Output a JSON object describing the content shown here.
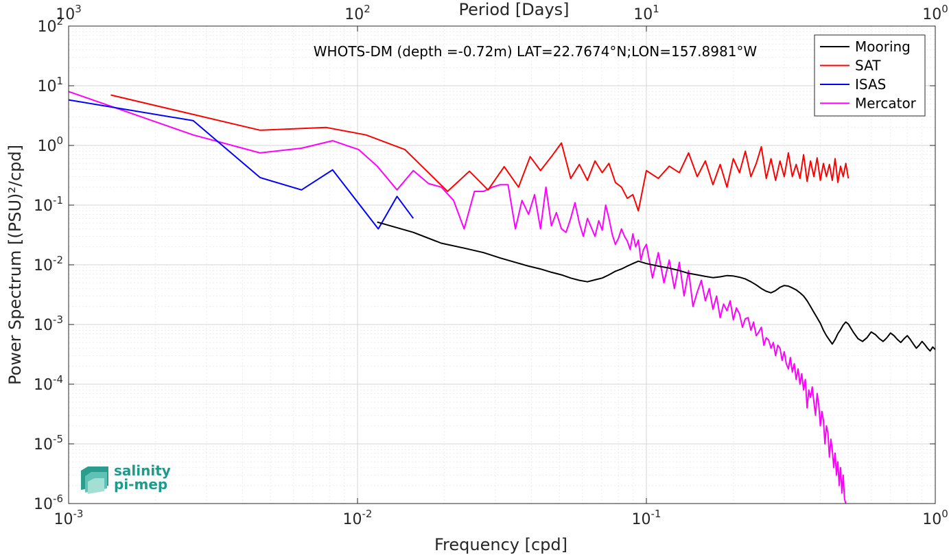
{
  "chart_data": {
    "type": "line",
    "title": "",
    "annotation": "WHOTS-DM (depth =-0.72m) LAT=22.7674°N;LON=157.8981°W",
    "xlabel": "Frequency [cpd]",
    "xlabel_top": "Period [Days]",
    "ylabel": "Power Spectrum [(PSU)²/cpd]",
    "x_scale": "log",
    "y_scale": "log",
    "xlim": [
      0.001,
      1
    ],
    "ylim": [
      1e-06,
      100
    ],
    "grid": true,
    "legend_position": "top-right",
    "x_ticks": [
      {
        "v": 0.001,
        "b": "10",
        "e": "-3"
      },
      {
        "v": 0.01,
        "b": "10",
        "e": "-2"
      },
      {
        "v": 0.1,
        "b": "10",
        "e": "-1"
      },
      {
        "v": 1,
        "b": "10",
        "e": "0"
      }
    ],
    "x_top_ticks": [
      {
        "v": 0.001,
        "b": "10",
        "e": "3"
      },
      {
        "v": 0.01,
        "b": "10",
        "e": "2"
      },
      {
        "v": 0.1,
        "b": "10",
        "e": "1"
      },
      {
        "v": 1,
        "b": "10",
        "e": "0"
      }
    ],
    "y_ticks": [
      {
        "v": 1e-06,
        "b": "10",
        "e": "-6"
      },
      {
        "v": 1e-05,
        "b": "10",
        "e": "-5"
      },
      {
        "v": 0.0001,
        "b": "10",
        "e": "-4"
      },
      {
        "v": 0.001,
        "b": "10",
        "e": "-3"
      },
      {
        "v": 0.01,
        "b": "10",
        "e": "-2"
      },
      {
        "v": 0.1,
        "b": "10",
        "e": "-1"
      },
      {
        "v": 1,
        "b": "10",
        "e": "0"
      },
      {
        "v": 10,
        "b": "10",
        "e": "1"
      },
      {
        "v": 100,
        "b": "10",
        "e": "2"
      }
    ],
    "series": [
      {
        "name": "Mooring",
        "color": "#000000",
        "x": [
          0.0117,
          0.0156,
          0.0195,
          0.0234,
          0.0273,
          0.0312,
          0.0352,
          0.0391,
          0.043,
          0.0469,
          0.0508,
          0.0547,
          0.0586,
          0.0625,
          0.0664,
          0.0703,
          0.0742,
          0.0781,
          0.082,
          0.0859,
          0.0898,
          0.0938,
          0.1,
          0.11,
          0.12,
          0.13,
          0.14,
          0.15,
          0.16,
          0.17,
          0.18,
          0.19,
          0.2,
          0.21,
          0.22,
          0.23,
          0.24,
          0.25,
          0.26,
          0.27,
          0.28,
          0.29,
          0.3,
          0.31,
          0.32,
          0.33,
          0.34,
          0.35,
          0.36,
          0.37,
          0.38,
          0.39,
          0.4,
          0.41,
          0.42,
          0.43,
          0.44,
          0.45,
          0.46,
          0.47,
          0.48,
          0.49,
          0.5,
          0.52,
          0.54,
          0.56,
          0.58,
          0.6,
          0.62,
          0.64,
          0.66,
          0.68,
          0.7,
          0.72,
          0.74,
          0.76,
          0.78,
          0.8,
          0.82,
          0.84,
          0.86,
          0.88,
          0.9,
          0.92,
          0.94,
          0.96,
          0.98,
          1.0
        ],
        "y": [
          0.052,
          0.035,
          0.023,
          0.019,
          0.016,
          0.013,
          0.011,
          0.0095,
          0.0085,
          0.0075,
          0.0068,
          0.006,
          0.0055,
          0.0052,
          0.0056,
          0.006,
          0.0068,
          0.0078,
          0.0085,
          0.0095,
          0.0105,
          0.0115,
          0.0105,
          0.0095,
          0.0088,
          0.008,
          0.0072,
          0.0068,
          0.0064,
          0.0061,
          0.0063,
          0.0066,
          0.0065,
          0.0062,
          0.0058,
          0.0052,
          0.0046,
          0.004,
          0.0036,
          0.0034,
          0.0037,
          0.0042,
          0.0045,
          0.0044,
          0.0041,
          0.0038,
          0.0034,
          0.003,
          0.0025,
          0.002,
          0.0016,
          0.0013,
          0.00105,
          0.0008,
          0.00065,
          0.00055,
          0.00047,
          0.00056,
          0.0007,
          0.00082,
          0.00098,
          0.0011,
          0.00102,
          0.00075,
          0.00058,
          0.00052,
          0.0006,
          0.00075,
          0.00068,
          0.00058,
          0.00052,
          0.0006,
          0.00072,
          0.00065,
          0.00056,
          0.0005,
          0.00058,
          0.00065,
          0.00056,
          0.00047,
          0.0004,
          0.00045,
          0.00052,
          0.00046,
          0.0004,
          0.00036,
          0.00042,
          0.00038
        ]
      },
      {
        "name": "SAT",
        "color": "#ff0000",
        "x": [
          0.0014,
          0.0046,
          0.0078,
          0.0107,
          0.0146,
          0.0205,
          0.0244,
          0.0283,
          0.0322,
          0.0361,
          0.0396,
          0.043,
          0.0469,
          0.0508,
          0.0547,
          0.0586,
          0.0625,
          0.0664,
          0.0703,
          0.0742,
          0.0781,
          0.082,
          0.0859,
          0.0898,
          0.0938,
          0.1,
          0.11,
          0.12,
          0.13,
          0.14,
          0.15,
          0.16,
          0.17,
          0.18,
          0.19,
          0.2,
          0.21,
          0.22,
          0.23,
          0.24,
          0.25,
          0.26,
          0.27,
          0.28,
          0.29,
          0.3,
          0.31,
          0.32,
          0.33,
          0.34,
          0.35,
          0.36,
          0.37,
          0.38,
          0.39,
          0.4,
          0.41,
          0.42,
          0.43,
          0.44,
          0.45,
          0.46,
          0.47,
          0.48,
          0.49,
          0.5
        ],
        "y": [
          7.0,
          1.8,
          2.0,
          1.5,
          0.85,
          0.17,
          0.37,
          0.18,
          0.44,
          0.2,
          0.65,
          0.38,
          0.65,
          1.1,
          0.28,
          0.48,
          0.26,
          0.55,
          0.35,
          0.5,
          0.24,
          0.2,
          0.13,
          0.15,
          0.08,
          0.38,
          0.28,
          0.45,
          0.35,
          0.75,
          0.3,
          0.55,
          0.22,
          0.48,
          0.2,
          0.6,
          0.35,
          0.8,
          0.3,
          0.5,
          0.95,
          0.28,
          0.6,
          0.26,
          0.55,
          0.3,
          0.75,
          0.3,
          0.48,
          0.28,
          0.7,
          0.25,
          0.55,
          0.3,
          0.62,
          0.26,
          0.5,
          0.3,
          0.48,
          0.26,
          0.6,
          0.24,
          0.45,
          0.3,
          0.5,
          0.28
        ]
      },
      {
        "name": "ISAS",
        "color": "#0000ff",
        "x": [
          0.001,
          0.0027,
          0.0046,
          0.0064,
          0.0082,
          0.0118,
          0.0137,
          0.0156
        ],
        "y": [
          5.8,
          2.6,
          0.29,
          0.18,
          0.39,
          0.04,
          0.14,
          0.06
        ]
      },
      {
        "name": "Mercator",
        "color": "#ff00ff",
        "x": [
          0.001,
          0.0027,
          0.0046,
          0.0064,
          0.0082,
          0.0101,
          0.0117,
          0.0137,
          0.0156,
          0.0176,
          0.0195,
          0.0215,
          0.0234,
          0.0254,
          0.0273,
          0.0293,
          0.0312,
          0.0332,
          0.0352,
          0.0371,
          0.0391,
          0.041,
          0.043,
          0.0449,
          0.0469,
          0.0488,
          0.0508,
          0.0527,
          0.0547,
          0.0566,
          0.0586,
          0.0605,
          0.0625,
          0.0645,
          0.0664,
          0.0684,
          0.0703,
          0.0723,
          0.0742,
          0.0762,
          0.0781,
          0.0801,
          0.082,
          0.084,
          0.0859,
          0.0879,
          0.0898,
          0.0918,
          0.0938,
          0.0957,
          0.0977,
          0.1,
          0.105,
          0.11,
          0.115,
          0.12,
          0.125,
          0.13,
          0.135,
          0.14,
          0.145,
          0.15,
          0.155,
          0.16,
          0.165,
          0.17,
          0.175,
          0.18,
          0.185,
          0.19,
          0.195,
          0.2,
          0.205,
          0.21,
          0.215,
          0.22,
          0.225,
          0.23,
          0.235,
          0.24,
          0.245,
          0.25,
          0.255,
          0.26,
          0.265,
          0.27,
          0.275,
          0.28,
          0.285,
          0.29,
          0.295,
          0.3,
          0.305,
          0.31,
          0.315,
          0.32,
          0.325,
          0.33,
          0.335,
          0.34,
          0.345,
          0.35,
          0.355,
          0.36,
          0.365,
          0.37,
          0.375,
          0.38,
          0.385,
          0.39,
          0.395,
          0.4,
          0.405,
          0.41,
          0.415,
          0.42,
          0.425,
          0.43,
          0.435,
          0.44,
          0.445,
          0.45,
          0.455,
          0.46,
          0.465,
          0.47,
          0.475,
          0.48,
          0.485,
          0.49
        ],
        "y": [
          8.0,
          1.5,
          0.75,
          0.9,
          1.2,
          0.85,
          0.45,
          0.18,
          0.38,
          0.23,
          0.2,
          0.12,
          0.04,
          0.17,
          0.17,
          0.2,
          0.22,
          0.22,
          0.04,
          0.12,
          0.07,
          0.15,
          0.04,
          0.2,
          0.045,
          0.075,
          0.04,
          0.035,
          0.06,
          0.11,
          0.05,
          0.03,
          0.06,
          0.042,
          0.03,
          0.055,
          0.038,
          0.1,
          0.06,
          0.032,
          0.022,
          0.028,
          0.04,
          0.03,
          0.025,
          0.018,
          0.033,
          0.02,
          0.026,
          0.012,
          0.018,
          0.022,
          0.006,
          0.016,
          0.005,
          0.012,
          0.004,
          0.011,
          0.003,
          0.008,
          0.002,
          0.0035,
          0.0055,
          0.0025,
          0.004,
          0.0018,
          0.003,
          0.0013,
          0.0022,
          0.0017,
          0.0025,
          0.0012,
          0.0019,
          0.0015,
          0.0009,
          0.00125,
          0.0013,
          0.0008,
          0.0011,
          0.00065,
          0.00075,
          0.0009,
          0.00045,
          0.0006,
          0.00055,
          0.0004,
          0.0005,
          0.0003,
          0.00045,
          0.0004,
          0.00025,
          0.00035,
          0.00022,
          0.00018,
          0.00028,
          0.00016,
          0.00022,
          0.00012,
          0.00018,
          0.0001,
          0.00015,
          8e-05,
          0.00012,
          4e-05,
          8e-05,
          6e-05,
          9e-05,
          5e-05,
          3e-05,
          7e-05,
          4.5e-05,
          2e-05,
          3.5e-05,
          2.5e-05,
          1e-05,
          2e-05,
          1.5e-05,
          6e-06,
          1.2e-05,
          8e-06,
          4e-06,
          7e-06,
          3e-06,
          5e-06,
          2e-06,
          4e-06,
          1.5e-06,
          3e-06,
          1.2e-06,
          1e-06
        ]
      }
    ]
  },
  "logo": {
    "line1": "salinity",
    "line2": "pi-mep"
  },
  "colors": {
    "axis": "#262626",
    "grid": "#dcdcdc",
    "logo": "#1f9a8a"
  }
}
